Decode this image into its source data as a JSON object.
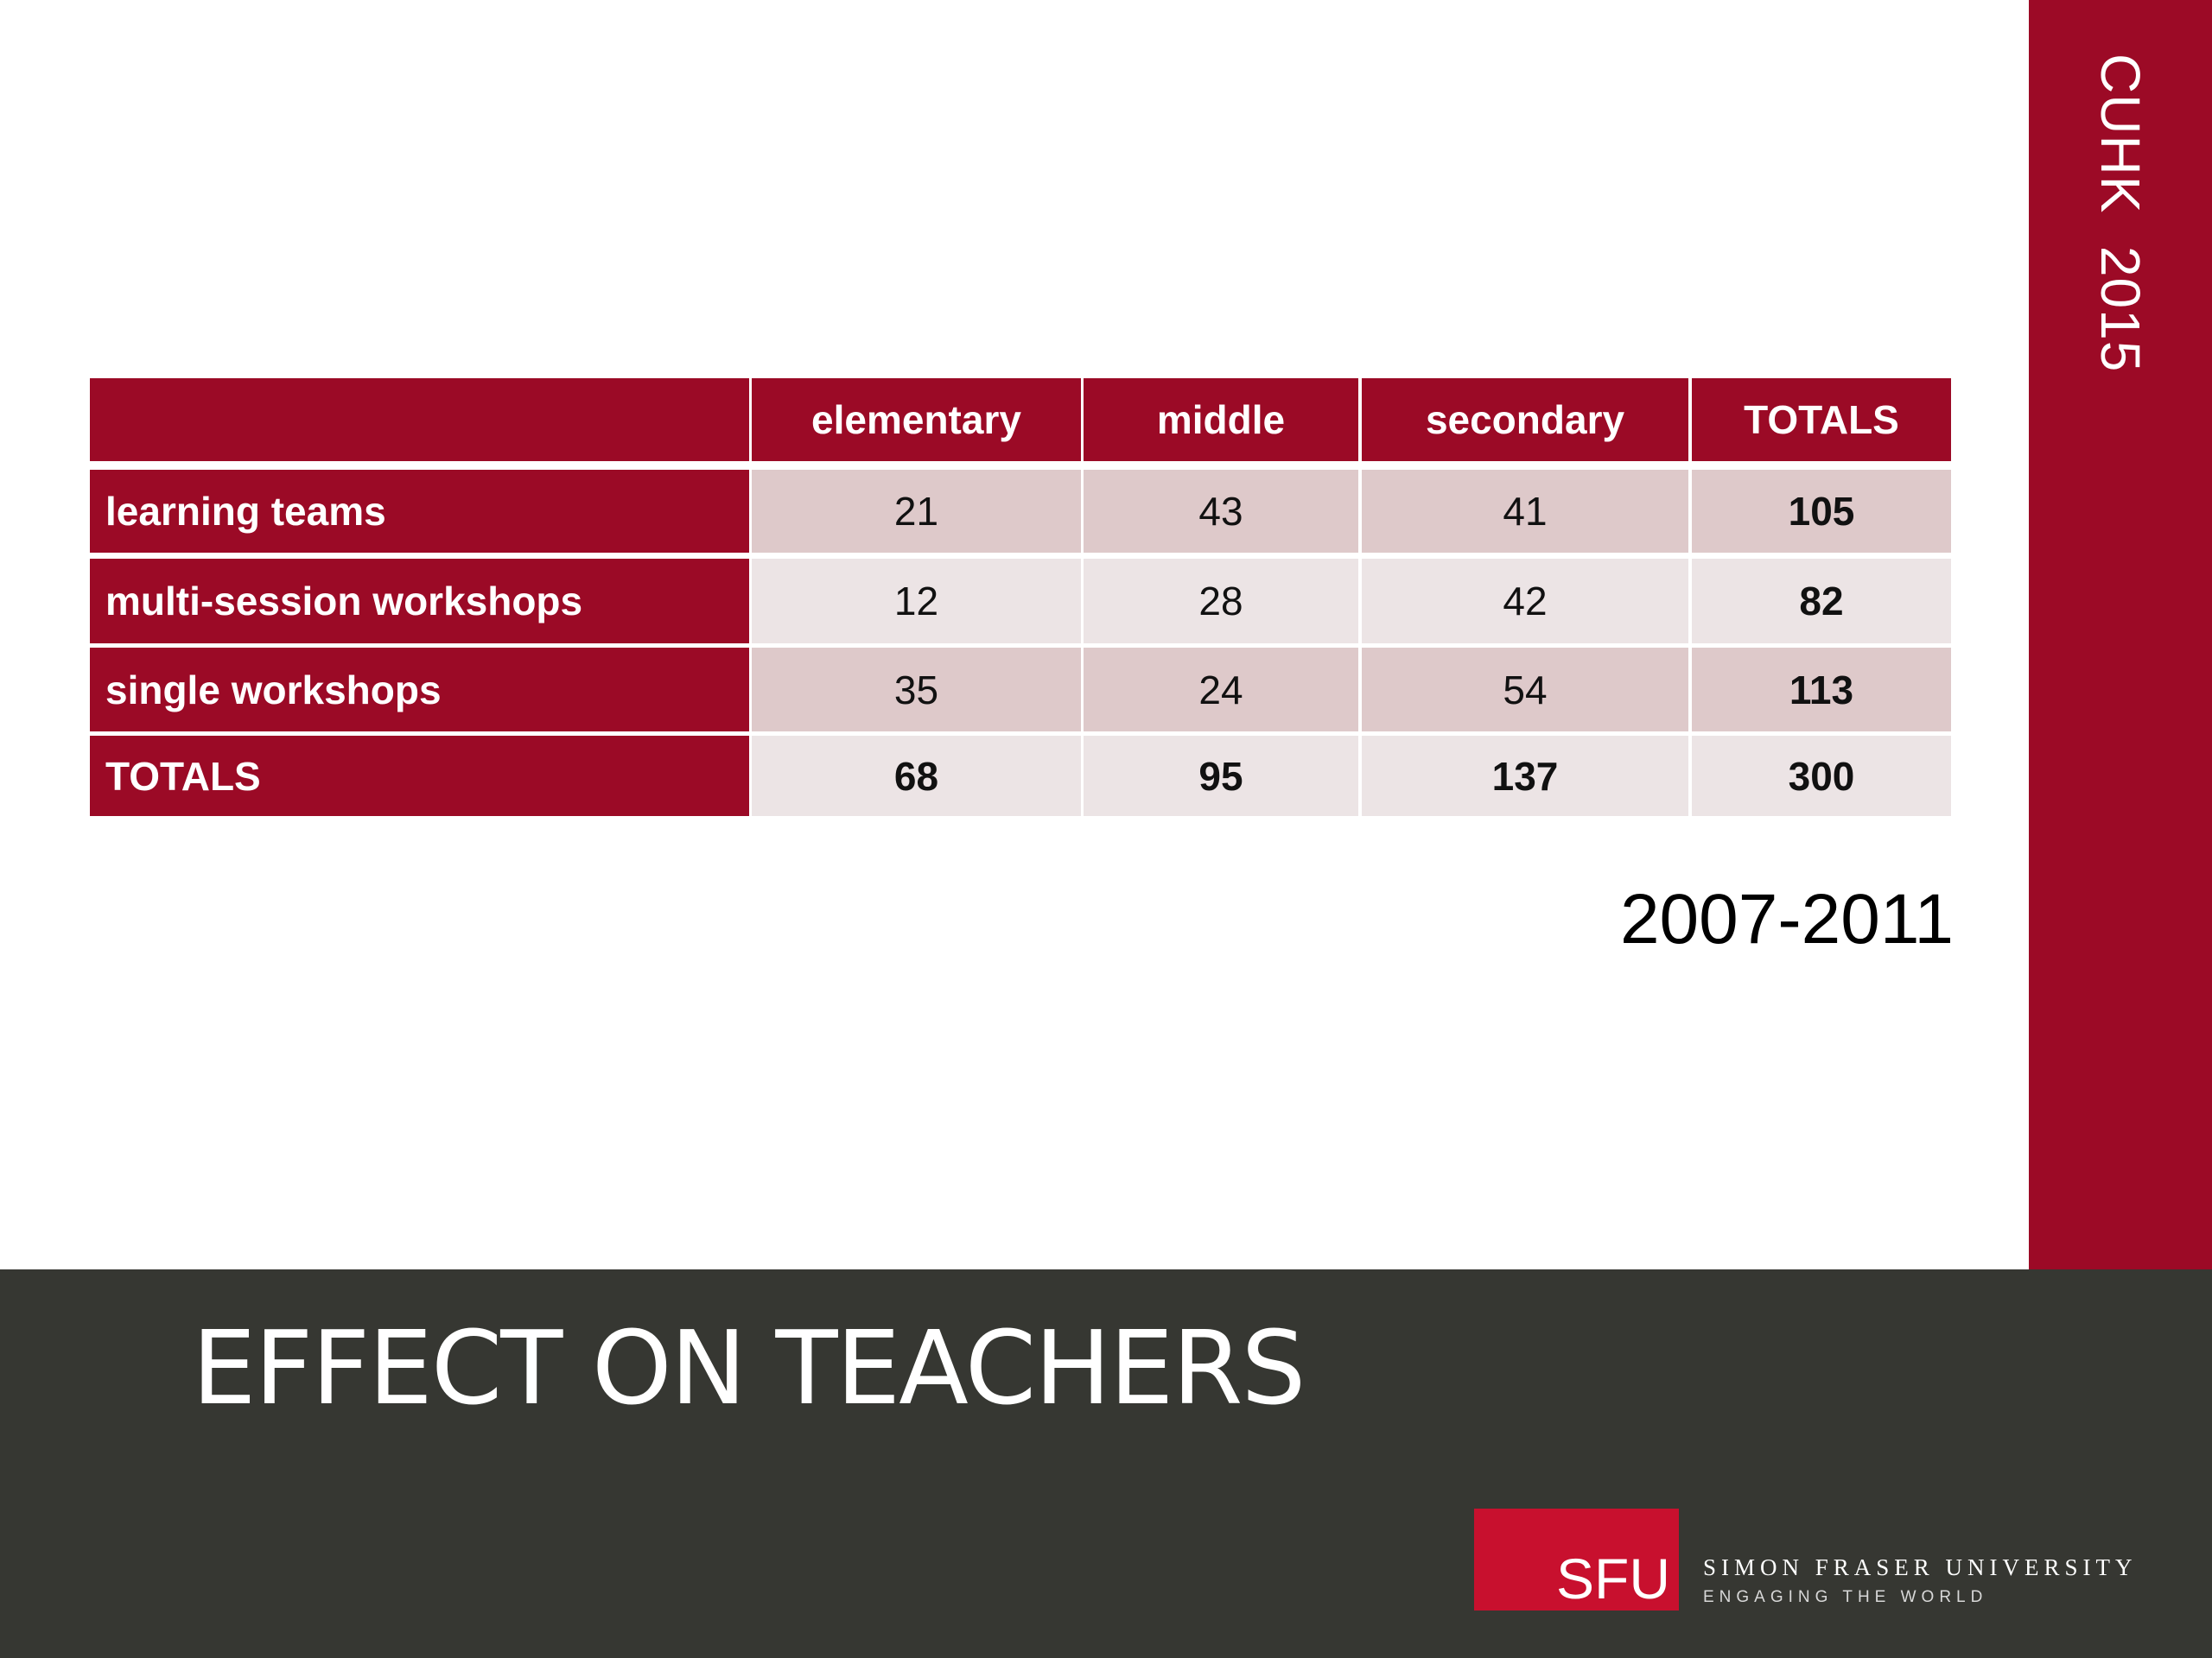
{
  "side_label": "CUHK  2015",
  "table": {
    "columns": [
      "elementary",
      "middle",
      "secondary",
      "TOTALS"
    ],
    "rows": [
      {
        "label": "learning teams",
        "values": [
          "21",
          "43",
          "41",
          "105"
        ]
      },
      {
        "label": "multi-session workshops",
        "values": [
          "12",
          "28",
          "42",
          "82"
        ]
      },
      {
        "label": "single workshops",
        "values": [
          "35",
          "24",
          "54",
          "113"
        ]
      },
      {
        "label": "TOTALS",
        "values": [
          "68",
          "95",
          "137",
          "300"
        ]
      }
    ]
  },
  "year": "2007-2011",
  "title": "EFFECT ON TEACHERS",
  "logo": {
    "mark": "SFU",
    "name": "SIMON FRASER UNIVERSITY",
    "tagline": "ENGAGING THE WORLD"
  }
}
